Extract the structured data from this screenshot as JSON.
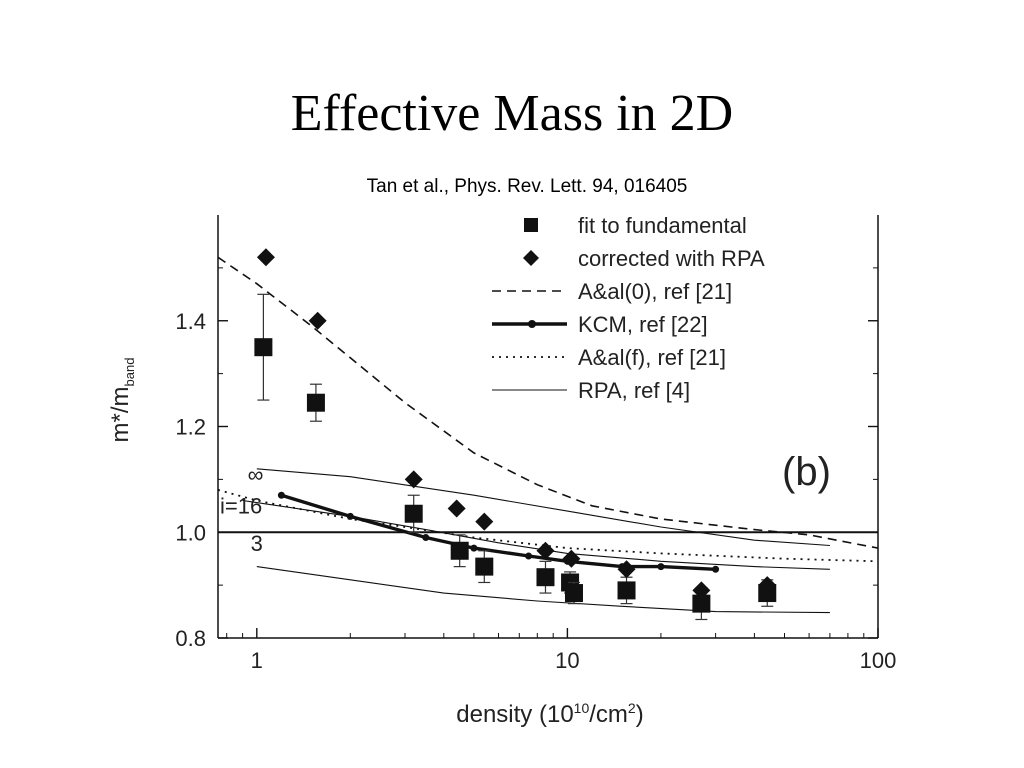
{
  "slide": {
    "title": "Effective Mass in 2D",
    "citation": "Tan et al., Phys. Rev. Lett. 94, 016405"
  },
  "chart_data": {
    "type": "scatter",
    "panel_label": "(b)",
    "xlabel_parts": [
      "density (10",
      "10",
      "/cm",
      "2",
      ")"
    ],
    "ylabel_parts": [
      "m*/m",
      "band"
    ],
    "xscale": "log",
    "xlim": [
      0.75,
      100
    ],
    "ylim": [
      0.8,
      1.6
    ],
    "xticks": [
      {
        "value": 1,
        "label": "1"
      },
      {
        "value": 10,
        "label": "10"
      },
      {
        "value": 100,
        "label": "100"
      }
    ],
    "yticks": [
      {
        "value": 0.8,
        "label": "0.8"
      },
      {
        "value": 1.0,
        "label": "1.0"
      },
      {
        "value": 1.2,
        "label": "1.2"
      },
      {
        "value": 1.4,
        "label": "1.4"
      }
    ],
    "reference_line": 1.0,
    "legend_position": "top-right",
    "curve_labels": [
      {
        "text": "∞",
        "x": 0.99,
        "y": 1.095
      },
      {
        "text": "i=16",
        "x": 0.89,
        "y": 1.035
      },
      {
        "text": "3",
        "x": 1.0,
        "y": 0.965
      }
    ],
    "series": [
      {
        "name": "fit to fundamental",
        "kind": "markers",
        "marker": "square",
        "points": [
          {
            "x": 1.05,
            "y": 1.35,
            "err": 0.1
          },
          {
            "x": 1.55,
            "y": 1.245,
            "err": 0.035
          },
          {
            "x": 3.2,
            "y": 1.035,
            "err": 0.035
          },
          {
            "x": 4.5,
            "y": 0.965,
            "err": 0.03
          },
          {
            "x": 5.4,
            "y": 0.935,
            "err": 0.03
          },
          {
            "x": 8.5,
            "y": 0.915,
            "err": 0.03
          },
          {
            "x": 10.2,
            "y": 0.905,
            "err": 0.02
          },
          {
            "x": 10.5,
            "y": 0.885,
            "err": 0.02
          },
          {
            "x": 15.5,
            "y": 0.89,
            "err": 0.025
          },
          {
            "x": 27,
            "y": 0.865,
            "err": 0.03
          },
          {
            "x": 44,
            "y": 0.885,
            "err": 0.025
          }
        ]
      },
      {
        "name": "corrected with RPA",
        "kind": "markers",
        "marker": "diamond",
        "points": [
          {
            "x": 1.07,
            "y": 1.52
          },
          {
            "x": 1.57,
            "y": 1.4
          },
          {
            "x": 3.2,
            "y": 1.1
          },
          {
            "x": 4.4,
            "y": 1.045
          },
          {
            "x": 5.4,
            "y": 1.02
          },
          {
            "x": 8.5,
            "y": 0.965
          },
          {
            "x": 10.3,
            "y": 0.95
          },
          {
            "x": 15.5,
            "y": 0.93
          },
          {
            "x": 27,
            "y": 0.89
          },
          {
            "x": 44,
            "y": 0.9
          }
        ]
      },
      {
        "name": "A&al(0), ref [21]",
        "kind": "line",
        "style": "dashed",
        "points": [
          {
            "x": 0.75,
            "y": 1.52
          },
          {
            "x": 1,
            "y": 1.47
          },
          {
            "x": 1.5,
            "y": 1.39
          },
          {
            "x": 2,
            "y": 1.33
          },
          {
            "x": 3,
            "y": 1.245
          },
          {
            "x": 5,
            "y": 1.15
          },
          {
            "x": 8,
            "y": 1.09
          },
          {
            "x": 12,
            "y": 1.05
          },
          {
            "x": 20,
            "y": 1.025
          },
          {
            "x": 40,
            "y": 1.005
          },
          {
            "x": 60,
            "y": 0.995
          },
          {
            "x": 100,
            "y": 0.97
          }
        ]
      },
      {
        "name": "KCM, ref [22]",
        "kind": "line",
        "style": "thick-dotted-markers",
        "points": [
          {
            "x": 1.2,
            "y": 1.07
          },
          {
            "x": 2,
            "y": 1.03
          },
          {
            "x": 3.5,
            "y": 0.99
          },
          {
            "x": 5,
            "y": 0.97
          },
          {
            "x": 7.5,
            "y": 0.955
          },
          {
            "x": 10,
            "y": 0.945
          },
          {
            "x": 15,
            "y": 0.935
          },
          {
            "x": 20,
            "y": 0.935
          },
          {
            "x": 30,
            "y": 0.93
          }
        ]
      },
      {
        "name": "A&al(f), ref [21]",
        "kind": "line",
        "style": "dotted",
        "points": [
          {
            "x": 0.75,
            "y": 1.08
          },
          {
            "x": 1,
            "y": 1.06
          },
          {
            "x": 2,
            "y": 1.025
          },
          {
            "x": 3,
            "y": 1.01
          },
          {
            "x": 5,
            "y": 0.99
          },
          {
            "x": 10,
            "y": 0.97
          },
          {
            "x": 20,
            "y": 0.96
          },
          {
            "x": 50,
            "y": 0.95
          },
          {
            "x": 100,
            "y": 0.945
          }
        ]
      },
      {
        "name": "RPA, ref [4]",
        "kind": "line-group",
        "style": "thin",
        "lines": [
          [
            {
              "x": 1,
              "y": 1.12
            },
            {
              "x": 2,
              "y": 1.105
            },
            {
              "x": 5,
              "y": 1.07
            },
            {
              "x": 10,
              "y": 1.04
            },
            {
              "x": 20,
              "y": 1.01
            },
            {
              "x": 40,
              "y": 0.985
            },
            {
              "x": 70,
              "y": 0.975
            }
          ],
          [
            {
              "x": 0.9,
              "y": 1.06
            },
            {
              "x": 2,
              "y": 1.03
            },
            {
              "x": 3.5,
              "y": 1.005
            },
            {
              "x": 6,
              "y": 0.98
            },
            {
              "x": 10,
              "y": 0.96
            },
            {
              "x": 20,
              "y": 0.945
            },
            {
              "x": 40,
              "y": 0.935
            },
            {
              "x": 70,
              "y": 0.93
            }
          ],
          [
            {
              "x": 1,
              "y": 0.935
            },
            {
              "x": 2,
              "y": 0.91
            },
            {
              "x": 4,
              "y": 0.885
            },
            {
              "x": 8,
              "y": 0.87
            },
            {
              "x": 15,
              "y": 0.86
            },
            {
              "x": 30,
              "y": 0.85
            },
            {
              "x": 70,
              "y": 0.848
            }
          ]
        ]
      }
    ]
  }
}
